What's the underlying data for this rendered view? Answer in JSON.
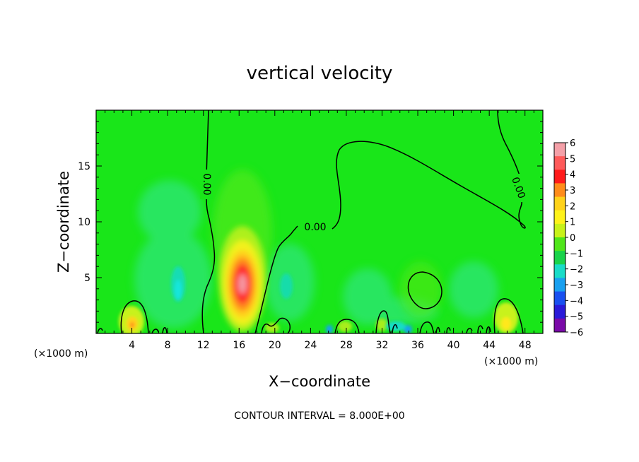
{
  "chart_data": {
    "type": "heatmap",
    "title": "vertical velocity",
    "xlabel": "X−coordinate",
    "ylabel": "Z−coordinate",
    "x_unit_left": "(×1000 m)",
    "x_unit_right": "(×1000 m)",
    "footer": "CONTOUR INTERVAL = 8.000E+00",
    "xlim": [
      0,
      50
    ],
    "ylim": [
      0,
      20
    ],
    "x_ticks": [
      4,
      8,
      12,
      16,
      20,
      24,
      28,
      32,
      36,
      40,
      44,
      48
    ],
    "x_tick_labels": [
      "4",
      "8",
      "12",
      "16",
      "20",
      "24",
      "28",
      "32",
      "36",
      "40",
      "44",
      "48"
    ],
    "y_ticks": [
      5,
      10,
      15
    ],
    "y_tick_labels": [
      "5",
      "10",
      "15"
    ],
    "colorbar": {
      "min": -6,
      "max": 6,
      "labels": [
        "6",
        "5",
        "4",
        "3",
        "2",
        "1",
        "0",
        "−1",
        "−2",
        "−3",
        "−4",
        "−5",
        "−6"
      ],
      "colors": [
        "#f4a0a8",
        "#ff5a5a",
        "#ff1a1a",
        "#ff8c1a",
        "#ffd21a",
        "#fff21a",
        "#c8f21a",
        "#50e61a",
        "#19d34a",
        "#19dcc8",
        "#19a0f0",
        "#1950f0",
        "#2a1ad8",
        "#7a0aa8"
      ]
    },
    "contour_label": "0.00",
    "features": [
      {
        "kind": "updraft",
        "x": 16.3,
        "z": 4.5,
        "max": 6
      },
      {
        "kind": "updraft",
        "x": 4.1,
        "z": 1.2,
        "max": 3
      },
      {
        "kind": "updraft",
        "x": 45.8,
        "z": 1.5,
        "max": 2
      },
      {
        "kind": "downdraft",
        "x": 9.5,
        "z": 3.0,
        "min": -2
      },
      {
        "kind": "downdraft",
        "x": 21.5,
        "z": 4.5,
        "min": -1
      },
      {
        "kind": "downdraft",
        "x": 34.7,
        "z": 0.3,
        "min": -3
      }
    ]
  }
}
